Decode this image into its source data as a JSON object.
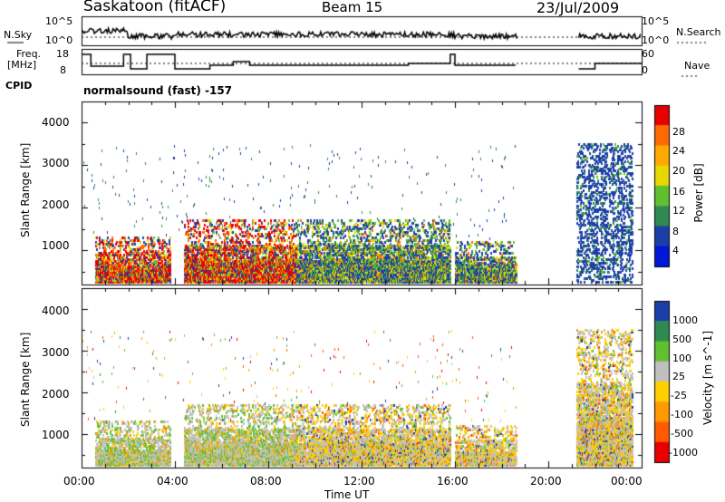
{
  "header": {
    "station": "Saskatoon (fitACF)",
    "beam": "Beam 15",
    "date": "23/Jul/2009"
  },
  "noise_panel": {
    "left_label": "N.Sky",
    "right_label": "N.Search",
    "left_ticks": [
      "10^5",
      "10^0"
    ],
    "right_ticks": [
      "10^5",
      "10^0"
    ]
  },
  "freq_panel": {
    "left_label_line1": "Freq.",
    "left_label_line2": "[MHz]",
    "right_label": "Nave",
    "left_ticks": [
      "18",
      "8"
    ],
    "right_ticks": [
      "60",
      "0"
    ]
  },
  "cpid": {
    "label": "CPID",
    "program": "normalsound (fast) -157"
  },
  "x_axis": {
    "label": "Time UT",
    "ticks": [
      "00:00",
      "04:00",
      "08:00",
      "12:00",
      "16:00",
      "20:00",
      "00:00"
    ]
  },
  "chart_data": [
    {
      "type": "heatmap",
      "name": "power",
      "ylabel": "Slant Range [km]",
      "y_ticks": [
        "1000",
        "2000",
        "3000",
        "4000"
      ],
      "ylim": [
        200,
        4500
      ],
      "xlim_hours": [
        0,
        24
      ],
      "colorbar_label": "Power [dB]",
      "colorbar_ticks": [
        "28",
        "24",
        "20",
        "16",
        "12",
        "8",
        "4"
      ],
      "colorbar_colors": [
        "#e80000",
        "#ff6a00",
        "#ffaa00",
        "#e6d800",
        "#60c030",
        "#2e8a50",
        "#1c3ea8",
        "#0016d8"
      ],
      "echo_regions": [
        {
          "t0": 0.6,
          "t1": 3.8,
          "r0": 220,
          "r1": 1300,
          "level": "strong"
        },
        {
          "t0": 4.4,
          "t1": 9.2,
          "r0": 220,
          "r1": 1700,
          "level": "strong"
        },
        {
          "t0": 9.2,
          "t1": 15.8,
          "r0": 220,
          "r1": 1700,
          "level": "moderate"
        },
        {
          "t0": 16.0,
          "t1": 18.6,
          "r0": 220,
          "r1": 1200,
          "level": "moderate"
        },
        {
          "t0": 21.2,
          "t1": 23.6,
          "r0": 220,
          "r1": 3500,
          "level": "weak"
        }
      ]
    },
    {
      "type": "heatmap",
      "name": "velocity",
      "ylabel": "Slant Range [km]",
      "y_ticks": [
        "1000",
        "2000",
        "3000",
        "4000"
      ],
      "ylim": [
        200,
        4500
      ],
      "xlim_hours": [
        0,
        24
      ],
      "colorbar_label": "Velocity [m s^-1]",
      "colorbar_ticks": [
        "1000",
        "500",
        "100",
        "25",
        "-25",
        "-100",
        "-500",
        "-1000"
      ],
      "colorbar_colors": [
        "#1c3ea8",
        "#2e8a50",
        "#60c030",
        "#c0c0c0",
        "#ffd000",
        "#ff9a00",
        "#ff5a00",
        "#e80000"
      ],
      "echo_regions": [
        {
          "t0": 0.6,
          "t1": 3.8,
          "r0": 220,
          "r1": 1300,
          "level": "ground"
        },
        {
          "t0": 4.4,
          "t1": 9.2,
          "r0": 220,
          "r1": 1700,
          "level": "ground"
        },
        {
          "t0": 9.2,
          "t1": 15.8,
          "r0": 220,
          "r1": 1700,
          "level": "mixed"
        },
        {
          "t0": 16.0,
          "t1": 18.6,
          "r0": 220,
          "r1": 1200,
          "level": "mixed"
        },
        {
          "t0": 21.2,
          "t1": 23.6,
          "r0": 220,
          "r1": 3500,
          "level": "mixed"
        }
      ]
    }
  ]
}
